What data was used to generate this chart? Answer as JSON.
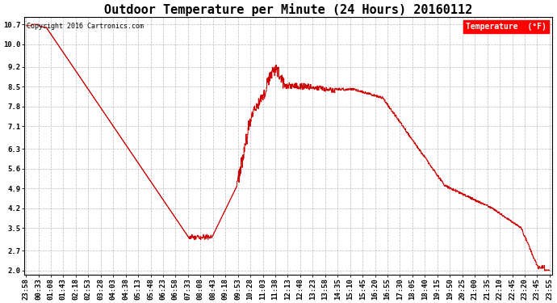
{
  "title": "Outdoor Temperature per Minute (24 Hours) 20160112",
  "copyright_text": "Copyright 2016 Cartronics.com",
  "legend_label": "Temperature  (°F)",
  "yticks": [
    2.0,
    2.7,
    3.5,
    4.2,
    4.9,
    5.6,
    6.3,
    7.1,
    7.8,
    8.5,
    9.2,
    10.0,
    10.7
  ],
  "ylim": [
    1.85,
    10.95
  ],
  "line_color": "#cc0000",
  "background_color": "#ffffff",
  "grid_color": "#aaaaaa",
  "title_fontsize": 11,
  "tick_fontsize": 6.5,
  "xtick_labels": [
    "23:58",
    "00:33",
    "01:08",
    "01:43",
    "02:18",
    "02:53",
    "03:28",
    "04:03",
    "04:38",
    "05:13",
    "05:48",
    "06:23",
    "06:58",
    "07:33",
    "08:08",
    "08:43",
    "09:18",
    "09:53",
    "10:28",
    "11:03",
    "11:38",
    "12:13",
    "12:48",
    "13:23",
    "13:58",
    "14:35",
    "15:10",
    "15:45",
    "16:20",
    "16:55",
    "17:30",
    "18:05",
    "18:40",
    "19:15",
    "19:50",
    "20:25",
    "21:00",
    "21:35",
    "22:10",
    "22:45",
    "23:20",
    "23:45",
    "23:55"
  ]
}
